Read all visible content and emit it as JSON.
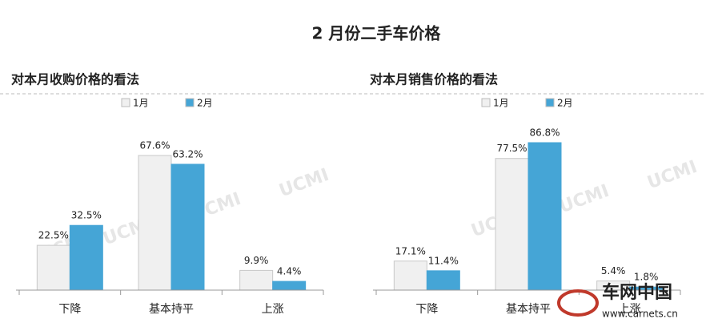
{
  "title": "2 月份二手车价格",
  "watermark": "UCMI",
  "logo": {
    "name": "车网中国",
    "url": "www.carnets.cn"
  },
  "chart_data": [
    {
      "type": "bar",
      "title": "对本月收购价格的看法",
      "categories": [
        "下降",
        "基本持平",
        "上涨"
      ],
      "series": [
        {
          "name": "1月",
          "color": "#f0f0f0",
          "values": [
            22.5,
            67.6,
            9.9
          ],
          "value_labels": [
            "22.5%",
            "67.6%",
            "9.9%"
          ]
        },
        {
          "name": "2月",
          "color": "#45a5d6",
          "values": [
            32.5,
            63.2,
            4.4
          ],
          "value_labels": [
            "32.5%",
            "63.2%",
            "4.4%"
          ]
        }
      ]
    },
    {
      "type": "bar",
      "title": "对本月销售价格的看法",
      "categories": [
        "下降",
        "基本持平",
        "上涨"
      ],
      "series": [
        {
          "name": "1月",
          "color": "#f0f0f0",
          "values": [
            17.1,
            77.5,
            5.4
          ],
          "value_labels": [
            "17.1%",
            "77.5%",
            "5.4%"
          ]
        },
        {
          "name": "2月",
          "color": "#45a5d6",
          "values": [
            11.4,
            86.8,
            1.8
          ],
          "value_labels": [
            "11.4%",
            "86.8%",
            "1.8%"
          ]
        }
      ]
    }
  ]
}
